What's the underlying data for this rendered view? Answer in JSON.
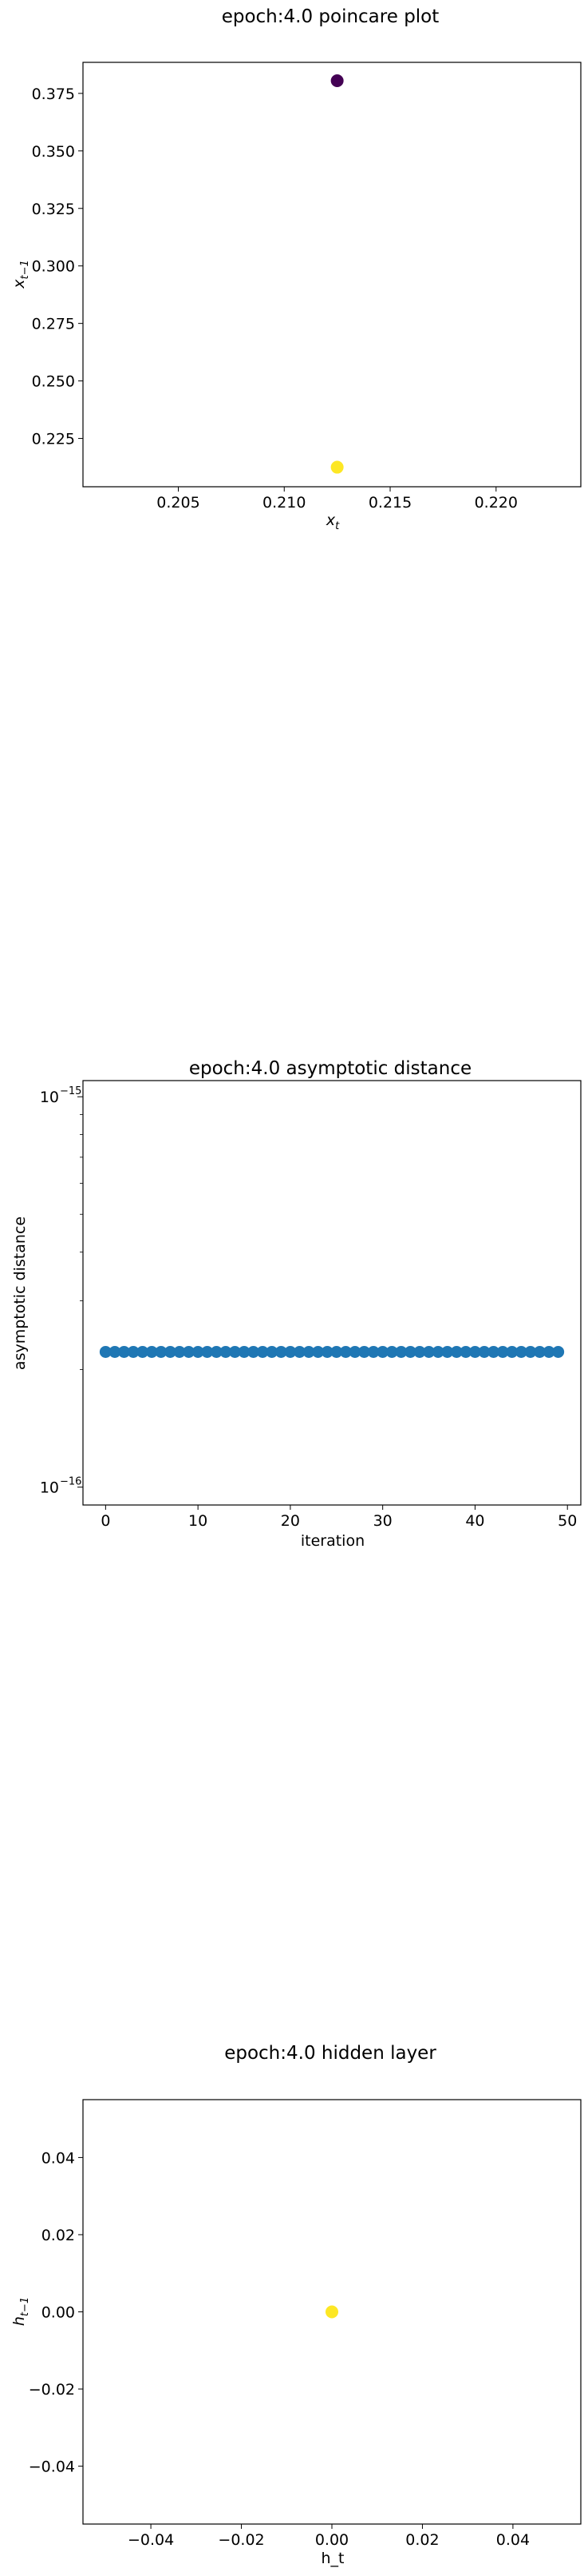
{
  "chart_data": [
    {
      "type": "scatter",
      "title": "epoch:4.0 poincare plot",
      "xlabel": "x_t",
      "ylabel": "x_{t-1}",
      "xlim": [
        0.2005,
        0.224
      ],
      "ylim": [
        0.204,
        0.3885
      ],
      "xticks": [
        "0.205",
        "0.210",
        "0.215",
        "0.220"
      ],
      "yticks": [
        "0.225",
        "0.250",
        "0.275",
        "0.300",
        "0.325",
        "0.350",
        "0.375"
      ],
      "points": [
        {
          "x": 0.2125,
          "y": 0.3805,
          "color": "#440154"
        },
        {
          "x": 0.2125,
          "y": 0.2125,
          "color": "#fde725"
        }
      ]
    },
    {
      "type": "scatter",
      "title": "epoch:4.0 asymptotic distance",
      "xlabel": "iteration",
      "ylabel": "asymptotic distance",
      "xlim": [
        -2.45,
        51.45
      ],
      "yscale": "log",
      "ylim": [
        9e-17,
        1.1e-15
      ],
      "xticks": [
        "0",
        "10",
        "20",
        "30",
        "40",
        "50"
      ],
      "yticks": [
        "10^-16",
        "10^-15"
      ],
      "x": [
        0,
        1,
        2,
        3,
        4,
        5,
        6,
        7,
        8,
        9,
        10,
        11,
        12,
        13,
        14,
        15,
        16,
        17,
        18,
        19,
        20,
        21,
        22,
        23,
        24,
        25,
        26,
        27,
        28,
        29,
        30,
        31,
        32,
        33,
        34,
        35,
        36,
        37,
        38,
        39,
        40,
        41,
        42,
        43,
        44,
        45,
        46,
        47,
        48,
        49
      ],
      "y_constant": 2.22e-16,
      "color": "#1f77b4"
    },
    {
      "type": "scatter",
      "title": "epoch:4.0 hidden layer",
      "xlabel": "h_t",
      "ylabel": "h_{t-1}",
      "xlim": [
        -0.055,
        0.055
      ],
      "ylim": [
        -0.055,
        0.055
      ],
      "xticks": [
        "−0.04",
        "−0.02",
        "0.00",
        "0.02",
        "0.04"
      ],
      "yticks": [
        "−0.04",
        "−0.02",
        "0.00",
        "0.02",
        "0.04"
      ],
      "points": [
        {
          "x": 0.0,
          "y": 0.0,
          "color": "#fde725"
        }
      ]
    }
  ]
}
